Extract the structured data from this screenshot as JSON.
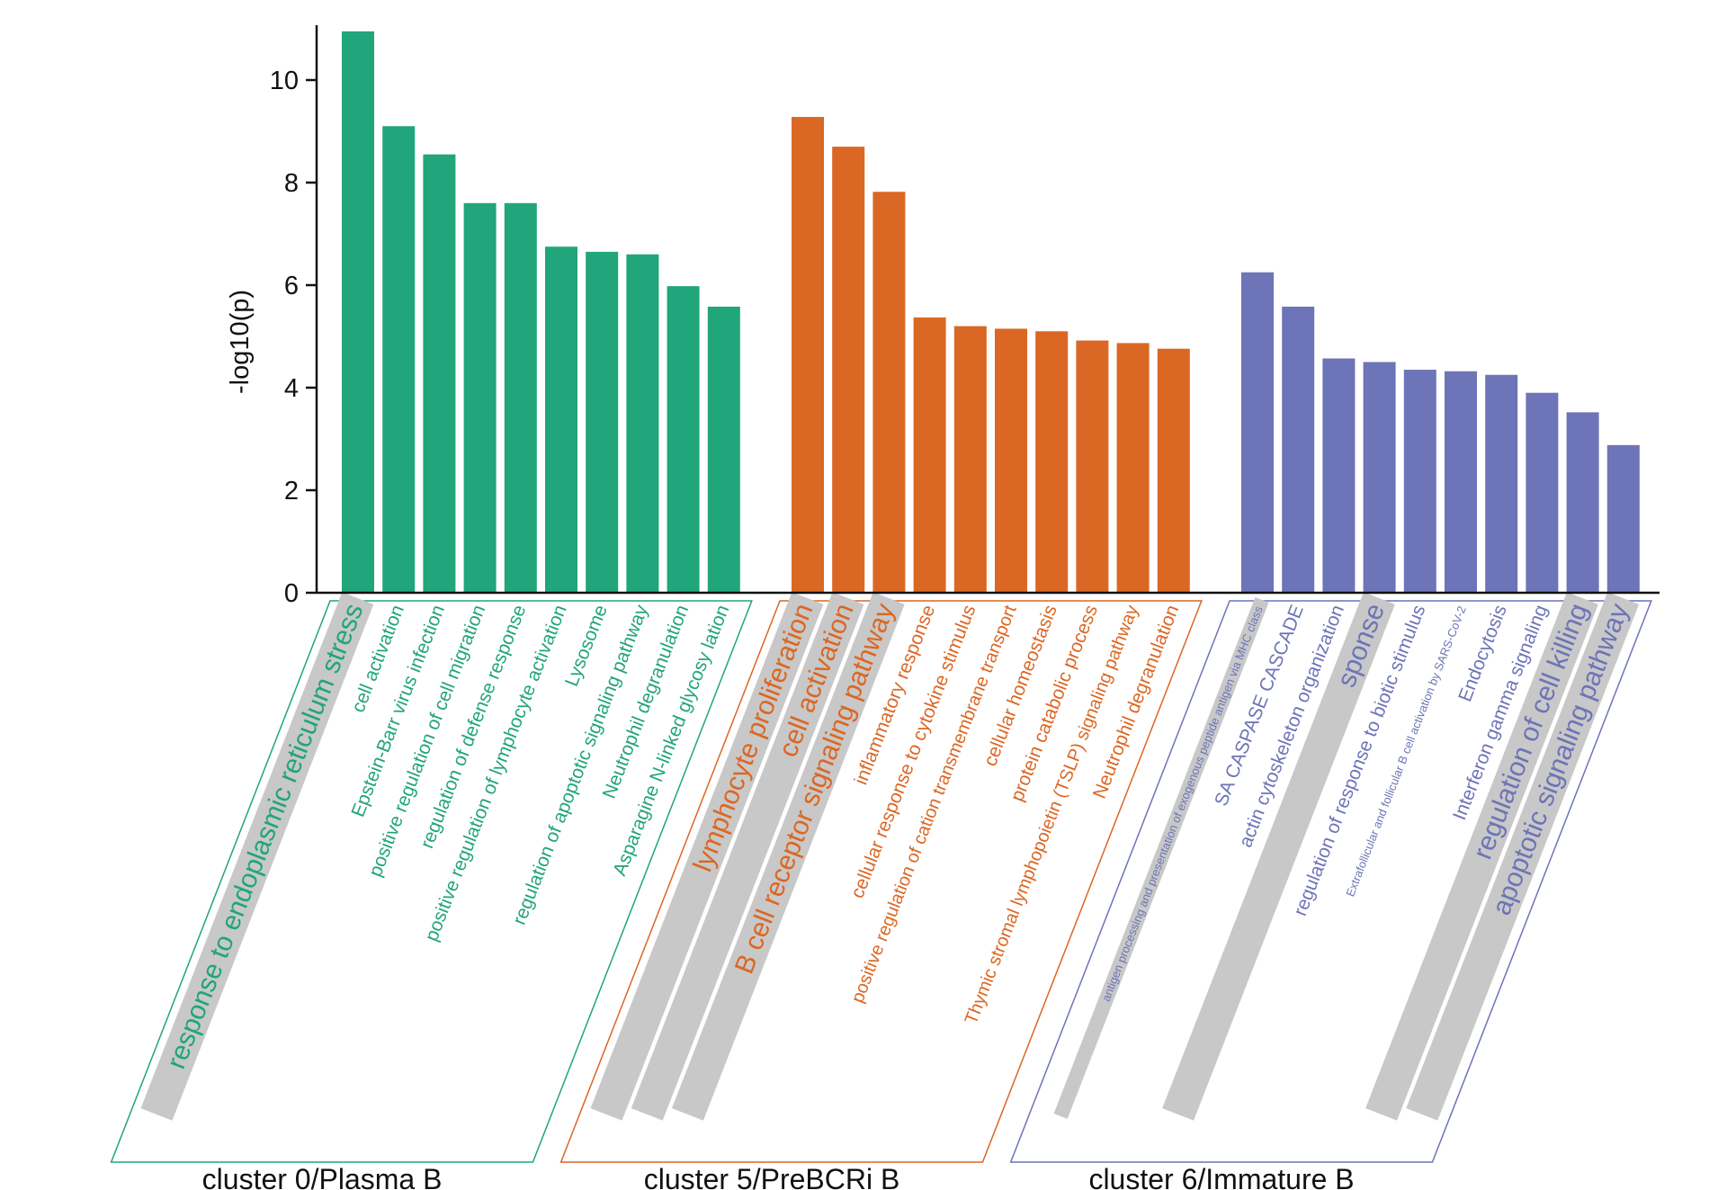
{
  "chart_data": {
    "type": "bar",
    "title": "",
    "xlabel": "",
    "ylabel": "-log10(p)",
    "ylim": [
      0,
      11
    ],
    "yticks": [
      0,
      2,
      4,
      6,
      8,
      10
    ],
    "grid": false,
    "colors": {
      "cluster0": "#21a57a",
      "cluster5": "#db6724",
      "cluster6": "#6d74b7",
      "highlight": "#c8c8c8"
    },
    "groups": [
      {
        "name": "cluster 0/Plasma B",
        "color": "#21a57a",
        "terms": [
          {
            "label": "response to endoplasmic reticulum stress",
            "value": 10.95,
            "highlight": true
          },
          {
            "label": "cell activation",
            "value": 9.1,
            "highlight": false
          },
          {
            "label": "Epstein-Barr virus infection",
            "value": 8.55,
            "highlight": false
          },
          {
            "label": "positive regulation of cell migration",
            "value": 7.6,
            "highlight": false
          },
          {
            "label": "regulation of defense response",
            "value": 7.6,
            "highlight": false
          },
          {
            "label": "positive regulation of lymphocyte activation",
            "value": 6.75,
            "highlight": false
          },
          {
            "label": "Lysosome",
            "value": 6.65,
            "highlight": false
          },
          {
            "label": "regulation of apoptotic signaling pathway",
            "value": 6.6,
            "highlight": false
          },
          {
            "label": "Neutrophil degranulation",
            "value": 5.98,
            "highlight": false
          },
          {
            "label": "Asparagine N-linked glycosy  lation",
            "value": 5.58,
            "highlight": false
          }
        ]
      },
      {
        "name": "cluster 5/PreBCRi B",
        "color": "#db6724",
        "terms": [
          {
            "label": "lymphocyte proliferation",
            "value": 9.28,
            "highlight": true
          },
          {
            "label": "cell activation",
            "value": 8.7,
            "highlight": true
          },
          {
            "label": "B cell receptor signaling pathway",
            "value": 7.82,
            "highlight": true
          },
          {
            "label": "inflammatory response",
            "value": 5.37,
            "highlight": false
          },
          {
            "label": "cellular response to cytokine stimulus",
            "value": 5.2,
            "highlight": false
          },
          {
            "label": "positive regulation of cation transmembrane transport",
            "value": 5.15,
            "highlight": false
          },
          {
            "label": "cellular homeostasis",
            "value": 5.1,
            "highlight": false
          },
          {
            "label": "protein catabolic process",
            "value": 4.92,
            "highlight": false
          },
          {
            "label": "Thymic stromal lymphopoietin (TSLP) signaling pathway",
            "value": 4.87,
            "highlight": false
          },
          {
            "label": "Neutrophil degranulation",
            "value": 4.76,
            "highlight": false
          }
        ]
      },
      {
        "name": "cluster 6/Immature B",
        "color": "#6d74b7",
        "terms": [
          {
            "label": "antigen processing and presentation of exogenous peptide antigen via MHC class",
            "value": 6.25,
            "highlight": true
          },
          {
            "label": "SA CASPASE CASCADE",
            "value": 5.58,
            "highlight": false
          },
          {
            "label": "actin cytoskeleton organization",
            "value": 4.57,
            "highlight": false
          },
          {
            "label": "sponse",
            "value": 4.5,
            "highlight": true
          },
          {
            "label": "regulation of response to biotic stimulus",
            "value": 4.35,
            "highlight": false
          },
          {
            "label": "Extrafollicular and follicular B cell activation by SARS-CoV-2",
            "value": 4.32,
            "highlight": false
          },
          {
            "label": "Endocytosis",
            "value": 4.25,
            "highlight": false
          },
          {
            "label": "Interferon gamma signaling",
            "value": 3.9,
            "highlight": false
          },
          {
            "label": "regulation of cell killing",
            "value": 3.52,
            "highlight": true
          },
          {
            "label": "apoptotic signaling pathway",
            "value": 2.88,
            "highlight": true
          }
        ]
      }
    ]
  }
}
